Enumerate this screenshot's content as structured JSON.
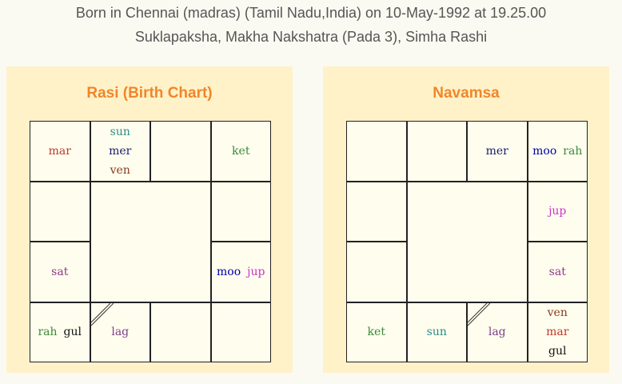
{
  "header": {
    "line1": "Born in Chennai (madras) (Tamil Nadu,India) on 10-May-1992 at 19.25.00",
    "line2": "Suklapaksha, Makha Nakshatra (Pada 3), Simha Rashi"
  },
  "colors": {
    "mar": "#c0392b",
    "sun": "#2e8b8b",
    "mer": "#1a1a6e",
    "ven": "#8b3a1a",
    "ket": "#3a8a3a",
    "sat": "#8b3a8b",
    "moo": "#0000a8",
    "jup": "#cc33cc",
    "rah": "#3a8a3a",
    "gul": "#111111",
    "lag": "#7b3f8b"
  },
  "charts": [
    {
      "title": "Rasi (Birth Chart)",
      "lagna_cell": "3-1",
      "cells": {
        "0-0": [
          [
            "mar"
          ]
        ],
        "0-1": [
          [
            "sun"
          ],
          [
            "mer"
          ],
          [
            "ven"
          ]
        ],
        "0-2": [],
        "0-3": [
          [
            "ket"
          ]
        ],
        "1-0": [],
        "1-3": [],
        "2-0": [
          [
            "sat"
          ]
        ],
        "2-3": [
          [
            "moo",
            "jup"
          ]
        ],
        "3-0": [
          [
            "rah",
            "gul"
          ]
        ],
        "3-1": [
          [
            "lag"
          ]
        ],
        "3-2": [],
        "3-3": []
      }
    },
    {
      "title": "Navamsa",
      "lagna_cell": "3-2",
      "cells": {
        "0-0": [],
        "0-1": [],
        "0-2": [
          [
            "mer"
          ]
        ],
        "0-3": [
          [
            "moo",
            "rah"
          ]
        ],
        "1-0": [],
        "1-3": [
          [
            "jup"
          ]
        ],
        "2-0": [],
        "2-3": [
          [
            "sat"
          ]
        ],
        "3-0": [
          [
            "ket"
          ]
        ],
        "3-1": [
          [
            "sun"
          ]
        ],
        "3-2": [
          [
            "lag"
          ]
        ],
        "3-3": [
          [
            "ven"
          ],
          [
            "mar"
          ],
          [
            "gul"
          ]
        ]
      }
    }
  ]
}
